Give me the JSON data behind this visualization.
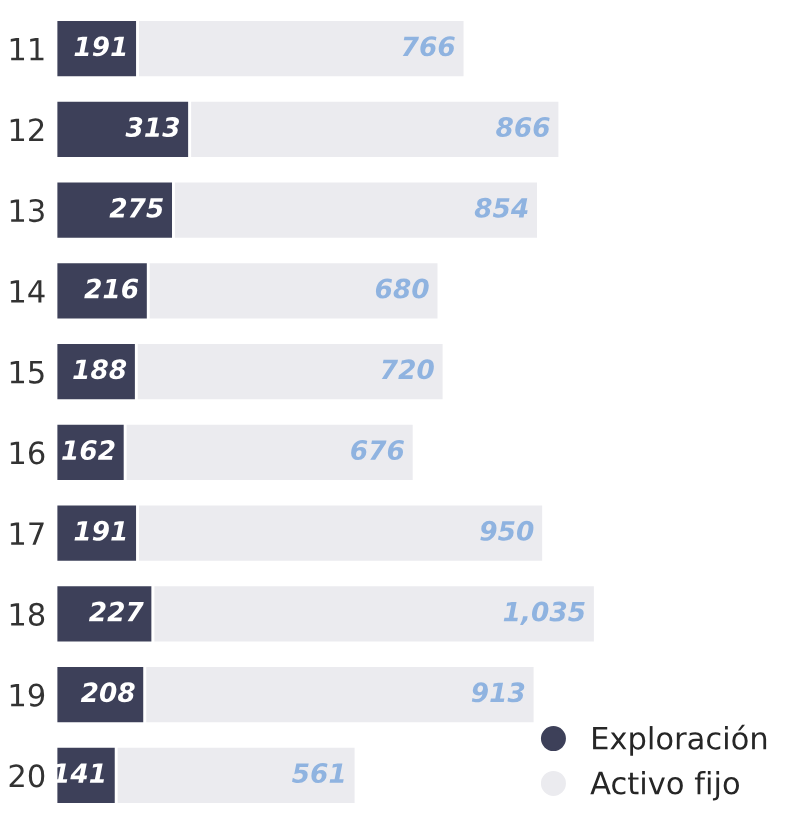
{
  "chart_data": {
    "type": "bar",
    "orientation": "horizontal",
    "stacked": true,
    "categories": [
      "11",
      "12",
      "13",
      "14",
      "15",
      "16",
      "17",
      "18",
      "19",
      "20"
    ],
    "series": [
      {
        "name": "Exploración",
        "color": "#3d4059",
        "values": [
          191,
          313,
          275,
          216,
          188,
          162,
          191,
          227,
          208,
          141
        ],
        "value_labels": [
          "191",
          "313",
          "275",
          "216",
          "188",
          "162",
          "191",
          "227",
          "208",
          "141"
        ]
      },
      {
        "name": "Activo fijo",
        "color": "#ebebef",
        "values": [
          766,
          866,
          854,
          680,
          720,
          676,
          950,
          1035,
          913,
          561
        ],
        "value_labels": [
          "766",
          "866",
          "854",
          "680",
          "720",
          "676",
          "950",
          "1,035",
          "913",
          "561"
        ]
      }
    ],
    "legend": "bottom right",
    "tick_labels": "y",
    "grid": false
  }
}
